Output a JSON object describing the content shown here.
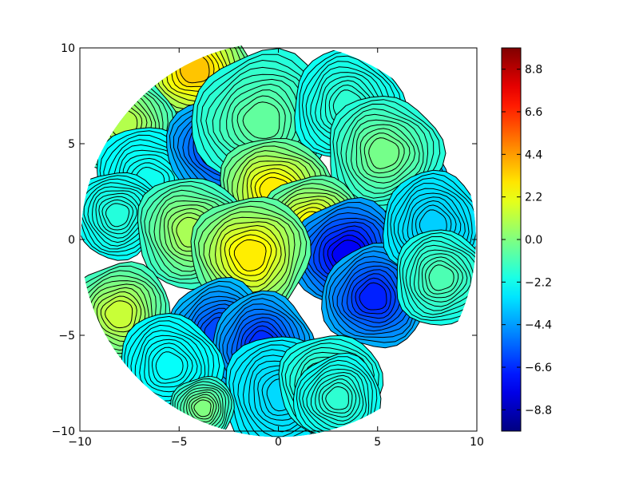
{
  "chart_data": {
    "type": "heatmap",
    "subtype": "filled contour plot with black contour lines, circular domain",
    "title": "",
    "xlabel": "",
    "ylabel": "",
    "xlim": [
      -10,
      10
    ],
    "ylim": [
      -10,
      10
    ],
    "x_ticks": [
      -10,
      -5,
      0,
      5,
      10
    ],
    "x_tick_labels": [
      "−10",
      "−5",
      "0",
      "5",
      "10"
    ],
    "y_ticks": [
      -10,
      -5,
      0,
      5,
      10
    ],
    "y_tick_labels": [
      "−10",
      "−5",
      "0",
      "5",
      "10"
    ],
    "colormap": "jet",
    "colorbar": {
      "range": [
        -9.9,
        9.9
      ],
      "ticks": [
        -8.8,
        -6.6,
        -4.4,
        -2.2,
        0.0,
        2.2,
        4.4,
        6.6,
        8.8
      ],
      "tick_labels": [
        "−8.8",
        "−6.6",
        "−4.4",
        "−2.2",
        "0.0",
        "2.2",
        "4.4",
        "6.6",
        "8.8"
      ]
    },
    "contour_levels": 18,
    "domain": "circle of radius 10 centered at origin",
    "grid": false,
    "blobs": [
      {
        "x": -4.2,
        "y": 8.9,
        "r": 2.8,
        "v": 3.6
      },
      {
        "x": -7.8,
        "y": 6.1,
        "r": 2.6,
        "v": 1.0
      },
      {
        "x": -6.5,
        "y": 3.0,
        "r": 2.8,
        "v": -2.2
      },
      {
        "x": -8.1,
        "y": 1.3,
        "r": 2.2,
        "v": -1.8
      },
      {
        "x": -2.9,
        "y": 4.8,
        "r": 2.7,
        "v": -6.5
      },
      {
        "x": -0.8,
        "y": 6.2,
        "r": 3.5,
        "v": -0.6
      },
      {
        "x": 5.6,
        "y": 3.0,
        "r": 3.0,
        "v": -5.2
      },
      {
        "x": 3.5,
        "y": 7.0,
        "r": 2.8,
        "v": -1.6
      },
      {
        "x": 5.3,
        "y": 4.5,
        "r": 2.9,
        "v": -0.2
      },
      {
        "x": -0.2,
        "y": 2.5,
        "r": 2.8,
        "v": 2.8
      },
      {
        "x": 1.7,
        "y": 0.8,
        "r": 2.5,
        "v": 2.4
      },
      {
        "x": 3.5,
        "y": -0.8,
        "r": 2.8,
        "v": -7.6
      },
      {
        "x": 4.8,
        "y": -3.0,
        "r": 2.6,
        "v": -6.8
      },
      {
        "x": 7.8,
        "y": 0.8,
        "r": 2.6,
        "v": -3.4
      },
      {
        "x": 8.2,
        "y": -2.0,
        "r": 2.4,
        "v": -1.0
      },
      {
        "x": -4.4,
        "y": 0.4,
        "r": 2.8,
        "v": 0.8
      },
      {
        "x": -1.4,
        "y": -0.8,
        "r": 3.0,
        "v": 2.8
      },
      {
        "x": -8.0,
        "y": -3.9,
        "r": 2.6,
        "v": 1.4
      },
      {
        "x": -3.0,
        "y": -4.8,
        "r": 2.6,
        "v": -6.0
      },
      {
        "x": -0.8,
        "y": -5.5,
        "r": 2.6,
        "v": -6.6
      },
      {
        "x": -5.5,
        "y": -6.6,
        "r": 2.6,
        "v": -2.4
      },
      {
        "x": 0.2,
        "y": -8.1,
        "r": 3.0,
        "v": -3.2
      },
      {
        "x": 2.6,
        "y": -7.6,
        "r": 2.6,
        "v": -1.2
      },
      {
        "x": -3.8,
        "y": -8.8,
        "r": 1.6,
        "v": 0.0
      },
      {
        "x": 3.0,
        "y": -8.3,
        "r": 2.2,
        "v": -1.6
      }
    ]
  }
}
